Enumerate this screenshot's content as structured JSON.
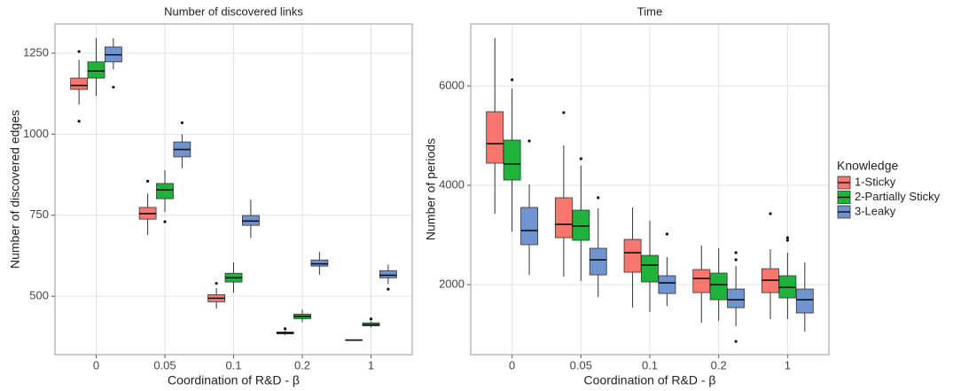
{
  "chart_data": [
    {
      "type": "box",
      "title": "Number of discovered links",
      "x_label": "Coordination of R&D - β",
      "y_label": "Number of discovered edges",
      "categories": [
        "0",
        "0.05",
        "0.1",
        "0.2",
        "1"
      ],
      "ylim": [
        320,
        1340
      ],
      "yticks": [
        500,
        750,
        1000,
        1250
      ],
      "grid": true,
      "series": [
        {
          "boxes": [
            {
              "whislo": 1091,
              "q1": 1138,
              "med": 1150,
              "q3": 1173,
              "whishi": 1230,
              "fliers": [
                1255,
                1040
              ]
            },
            {
              "whislo": 689,
              "q1": 738,
              "med": 755,
              "q3": 774,
              "whishi": 817,
              "fliers": [
                855
              ]
            },
            {
              "whislo": 462,
              "q1": 483,
              "med": 494,
              "q3": 505,
              "whishi": 525,
              "fliers": [
                540
              ]
            },
            {
              "whislo": 380,
              "q1": 384,
              "med": 387,
              "q3": 390,
              "whishi": 395,
              "fliers": [
                400
              ]
            },
            {
              "whislo": 365,
              "q1": 365,
              "med": 365,
              "q3": 365,
              "whishi": 365,
              "fliers": []
            }
          ]
        },
        {
          "boxes": [
            {
              "whislo": 1118,
              "q1": 1173,
              "med": 1195,
              "q3": 1223,
              "whishi": 1296,
              "fliers": []
            },
            {
              "whislo": 760,
              "q1": 801,
              "med": 828,
              "q3": 848,
              "whishi": 889,
              "fliers": [
                730
              ]
            },
            {
              "whislo": 511,
              "q1": 544,
              "med": 557,
              "q3": 571,
              "whishi": 604,
              "fliers": []
            },
            {
              "whislo": 420,
              "q1": 431,
              "med": 438,
              "q3": 445,
              "whishi": 459,
              "fliers": []
            },
            {
              "whislo": 404,
              "q1": 409,
              "med": 412,
              "q3": 418,
              "whishi": 423,
              "fliers": [
                430
              ]
            }
          ]
        },
        {
          "boxes": [
            {
              "whislo": 1200,
              "q1": 1223,
              "med": 1245,
              "q3": 1269,
              "whishi": 1296,
              "fliers": [
                1145
              ]
            },
            {
              "whislo": 895,
              "q1": 930,
              "med": 953,
              "q3": 976,
              "whishi": 1000,
              "fliers": [
                1035
              ]
            },
            {
              "whislo": 680,
              "q1": 719,
              "med": 732,
              "q3": 749,
              "whishi": 798,
              "fliers": []
            },
            {
              "whislo": 566,
              "q1": 593,
              "med": 600,
              "q3": 612,
              "whishi": 637,
              "fliers": []
            },
            {
              "whislo": 538,
              "q1": 557,
              "med": 565,
              "q3": 579,
              "whishi": 598,
              "fliers": [
                522
              ]
            }
          ]
        }
      ]
    },
    {
      "type": "box",
      "title": "Time",
      "x_label": "Coordination of R&D - β",
      "y_label": "Number of periods",
      "categories": [
        "0",
        "0.05",
        "0.1",
        "0.2",
        "1"
      ],
      "ylim": [
        590,
        7250
      ],
      "yticks": [
        2000,
        4000,
        6000
      ],
      "grid": true,
      "series": [
        {
          "boxes": [
            {
              "whislo": 3429,
              "q1": 4446,
              "med": 4839,
              "q3": 5482,
              "whishi": 6964,
              "fliers": []
            },
            {
              "whislo": 2161,
              "q1": 2946,
              "med": 3214,
              "q3": 3750,
              "whishi": 4804,
              "fliers": [
                5464
              ]
            },
            {
              "whislo": 1536,
              "q1": 2250,
              "med": 2643,
              "q3": 2911,
              "whishi": 3554,
              "fliers": []
            },
            {
              "whislo": 1232,
              "q1": 1839,
              "med": 2125,
              "q3": 2304,
              "whishi": 2786,
              "fliers": []
            },
            {
              "whislo": 1304,
              "q1": 1839,
              "med": 2089,
              "q3": 2321,
              "whishi": 2714,
              "fliers": [
                3429
              ]
            }
          ]
        },
        {
          "boxes": [
            {
              "whislo": 3071,
              "q1": 4107,
              "med": 4429,
              "q3": 4911,
              "whishi": 5946,
              "fliers": [
                6125
              ]
            },
            {
              "whislo": 2071,
              "q1": 2893,
              "med": 3179,
              "q3": 3500,
              "whishi": 4400,
              "fliers": [
                4536
              ]
            },
            {
              "whislo": 1446,
              "q1": 2054,
              "med": 2393,
              "q3": 2589,
              "whishi": 3286,
              "fliers": []
            },
            {
              "whislo": 1268,
              "q1": 1696,
              "med": 2000,
              "q3": 2232,
              "whishi": 2732,
              "fliers": []
            },
            {
              "whislo": 1304,
              "q1": 1732,
              "med": 1946,
              "q3": 2179,
              "whishi": 2643,
              "fliers": [
                2946,
                2893
              ]
            }
          ]
        },
        {
          "boxes": [
            {
              "whislo": 2196,
              "q1": 2804,
              "med": 3089,
              "q3": 3554,
              "whishi": 4018,
              "fliers": [
                4893
              ]
            },
            {
              "whislo": 1750,
              "q1": 2196,
              "med": 2500,
              "q3": 2732,
              "whishi": 3536,
              "fliers": [
                3750
              ]
            },
            {
              "whislo": 1571,
              "q1": 1821,
              "med": 2036,
              "q3": 2179,
              "whishi": 2554,
              "fliers": [
                3018
              ]
            },
            {
              "whislo": 1161,
              "q1": 1536,
              "med": 1696,
              "q3": 1911,
              "whishi": 2375,
              "fliers": [
                2643,
                2500,
                857
              ]
            },
            {
              "whislo": 1054,
              "q1": 1429,
              "med": 1696,
              "q3": 1911,
              "whishi": 2446,
              "fliers": []
            }
          ]
        }
      ]
    }
  ],
  "legend": {
    "title": "Knowledge",
    "entries": [
      {
        "name": "1-Sticky",
        "color": "#f8766d"
      },
      {
        "name": "2-Partially Sticky",
        "color": "#1fb33c"
      },
      {
        "name": "3-Leaky",
        "color": "#6f94d0"
      }
    ]
  }
}
